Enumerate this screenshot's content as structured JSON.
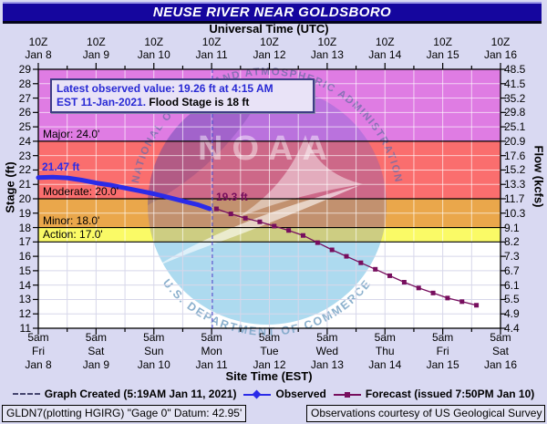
{
  "header": {
    "title": "NEUSE RIVER NEAR GOLDSBORO"
  },
  "top_axis": {
    "label": "Universal Time (UTC)",
    "hour_label": "10Z",
    "dates": [
      "Jan 8",
      "Jan 9",
      "Jan 10",
      "Jan 11",
      "Jan 12",
      "Jan 13",
      "Jan 14",
      "Jan 15",
      "Jan 16"
    ]
  },
  "bottom_axis": {
    "label": "Site Time (EST)",
    "hour_label": "5am",
    "days": [
      "Fri",
      "Sat",
      "Sun",
      "Mon",
      "Tue",
      "Wed",
      "Thu",
      "Fri",
      "Sat"
    ],
    "dates": [
      "Jan 8",
      "Jan 9",
      "Jan 10",
      "Jan 11",
      "Jan 12",
      "Jan 13",
      "Jan 14",
      "Jan 15",
      "Jan 16"
    ]
  },
  "left_axis": {
    "label": "Stage (ft)",
    "ticks": [
      29,
      28,
      27,
      26,
      25,
      24,
      23,
      22,
      21,
      20,
      19,
      18,
      17,
      16,
      15,
      14,
      13,
      12,
      11
    ]
  },
  "right_axis": {
    "label": "Flow (kcfs)",
    "ticks": [
      "48.5",
      "41.5",
      "35.2",
      "29.8",
      "25.1",
      "20.9",
      "17.6",
      "15.2",
      "13.3",
      "11.7",
      "10.3",
      "9.1",
      "8.2",
      "7.3",
      "6.7",
      "6.1",
      "5.5",
      "4.9",
      "4.4"
    ]
  },
  "callout": {
    "line1": "Latest observed value: 19.26 ft at 4:15 AM",
    "line2_date": "EST 11-Jan-2021.",
    "line2_flood": " Flood Stage is 18 ft"
  },
  "point_labels": {
    "observed_start": "21.47 ft",
    "forecast_start": "19.3 ft"
  },
  "legend": {
    "created": "Graph Created (5:19AM Jan 11, 2021)",
    "observed": "Observed",
    "forecast": "Forecast (issued 7:50PM Jan 10)"
  },
  "watermark": {
    "top_arc": "NATIONAL OCEANIC AND ATMOSPHERIC ADMINISTRATION",
    "noaa": "NOAA",
    "bottom_arc": "U.S. DEPARTMENT OF COMMERCE"
  },
  "footer": {
    "left": "GLDN7(plotting HGIRG) \"Gage 0\" Datum: 42.95'",
    "right": "Observations courtesy of US Geological Survey"
  },
  "colors": {
    "observed": "#2B2BE8",
    "forecast": "#770E5E",
    "created_line": "#3C3CC8",
    "titlebar": "#15069E",
    "background": "#D9D9F2"
  },
  "chart_data": {
    "type": "line",
    "title": "NEUSE RIVER NEAR GOLDSBORO",
    "x_axis": {
      "start": "Jan 8 5am EST (10Z)",
      "end": "Jan 16 5am EST (10Z)",
      "hours_span": 192,
      "major_tick_hours": 24,
      "grid_hours": 12
    },
    "y_left": {
      "label": "Stage (ft)",
      "min": 11,
      "max": 29,
      "step": 1
    },
    "y_right": {
      "label": "Flow (kcfs)",
      "ticks_top_to_bottom": [
        "48.5",
        "41.5",
        "35.2",
        "29.8",
        "25.1",
        "20.9",
        "17.6",
        "15.2",
        "13.3",
        "11.7",
        "10.3",
        "9.1",
        "8.2",
        "7.3",
        "6.7",
        "6.1",
        "5.5",
        "4.9",
        "4.4"
      ]
    },
    "flood_zones": [
      {
        "name": "Major",
        "from": 24,
        "to": 29,
        "color": "#DF7CE3",
        "label": "Major: 24.0'"
      },
      {
        "name": "Moderate",
        "from": 20,
        "to": 24,
        "color": "#FA6E6E",
        "label": "Moderate: 20.0'"
      },
      {
        "name": "Minor",
        "from": 18,
        "to": 20,
        "color": "#EAA74B",
        "label": "Minor: 18.0'"
      },
      {
        "name": "Action",
        "from": 17,
        "to": 18,
        "color": "#FAFA66",
        "label": "Action: 17.0'"
      }
    ],
    "flood_stage_ft": 18,
    "created_line_hour": 72.3,
    "series": [
      {
        "name": "Observed",
        "color": "#2B2BE8",
        "points_hour_stage": [
          [
            0,
            21.47
          ],
          [
            6,
            21.5
          ],
          [
            12,
            21.45
          ],
          [
            18,
            21.3
          ],
          [
            24,
            21.1
          ],
          [
            30,
            20.95
          ],
          [
            36,
            20.75
          ],
          [
            42,
            20.55
          ],
          [
            48,
            20.35
          ],
          [
            54,
            20.1
          ],
          [
            60,
            19.85
          ],
          [
            66,
            19.6
          ],
          [
            71.25,
            19.3
          ]
        ]
      },
      {
        "name": "Forecast",
        "color": "#770E5E",
        "points_hour_stage": [
          [
            74,
            19.3
          ],
          [
            80,
            18.95
          ],
          [
            86,
            18.65
          ],
          [
            92,
            18.4
          ],
          [
            98,
            18.1
          ],
          [
            104,
            17.8
          ],
          [
            110,
            17.45
          ],
          [
            116,
            16.95
          ],
          [
            122,
            16.45
          ],
          [
            128,
            16.0
          ],
          [
            134,
            15.55
          ],
          [
            140,
            15.1
          ],
          [
            146,
            14.65
          ],
          [
            152,
            14.2
          ],
          [
            158,
            13.8
          ],
          [
            164,
            13.45
          ],
          [
            170,
            13.1
          ],
          [
            176,
            12.85
          ],
          [
            182,
            12.6
          ]
        ]
      }
    ]
  }
}
